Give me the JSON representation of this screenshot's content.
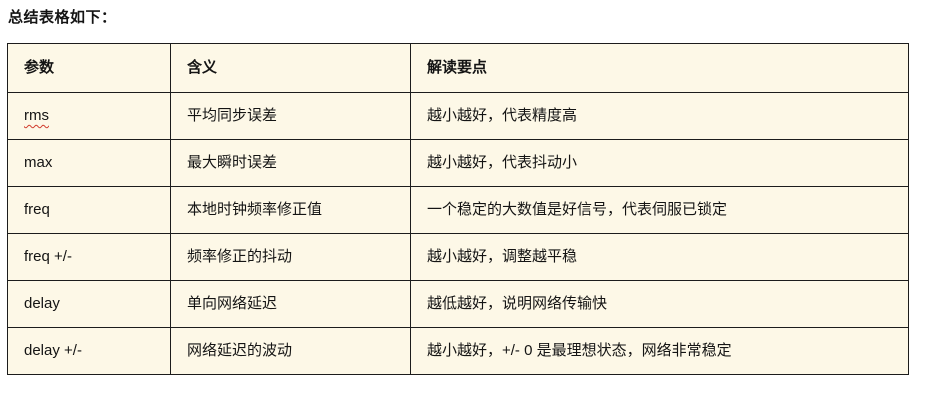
{
  "page": {
    "title": "总结表格如下："
  },
  "table": {
    "headers": [
      "参数",
      "含义",
      "解读要点"
    ],
    "rows": [
      {
        "param": "rms",
        "meaning": "平均同步误差",
        "notes": "越小越好，代表精度高",
        "spellcheck": true
      },
      {
        "param": "max",
        "meaning": "最大瞬时误差",
        "notes": "越小越好，代表抖动小",
        "spellcheck": false
      },
      {
        "param": "freq",
        "meaning": "本地时钟频率修正值",
        "notes": "一个稳定的大数值是好信号，代表伺服已锁定",
        "spellcheck": false
      },
      {
        "param": "freq +/-",
        "meaning": "频率修正的抖动",
        "notes": "越小越好，调整越平稳",
        "spellcheck": false
      },
      {
        "param": "delay",
        "meaning": "单向网络延迟",
        "notes": "越低越好，说明网络传输快",
        "spellcheck": false
      },
      {
        "param": "delay +/-",
        "meaning": "网络延迟的波动",
        "notes": "越小越好，+/- 0 是最理想状态，网络非常稳定",
        "spellcheck": false
      }
    ]
  },
  "colors": {
    "page_background": "#FFFFFF",
    "cell_background": "#FDF8E7",
    "border": "#1C1C1C",
    "text": "#141414",
    "spellcheck_underline": "#D03A2B"
  }
}
